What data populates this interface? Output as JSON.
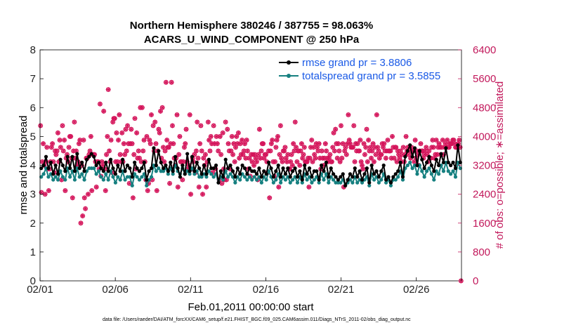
{
  "chart_data": {
    "type": "line",
    "title": [
      "Northern Hemisphere 380246 / 387755 = 98.063%",
      "ACARS_U_WIND_COMPONENT @ 250 hPa"
    ],
    "xlabel": "Feb.01,2011 00:00:00 start",
    "ylabel_left": "rmse and totalspread",
    "ylabel_right": "# of obs: o=possible; ∗=assimilated",
    "footnote": "data file: /Users/raeder/DAI/ATM_forcXX/CAM6_setup/f.e21.FHIST_BGC.f09_025.CAM6assim.011/Diags_NTrS_2011-02/obs_diag_output.nc",
    "x_ticks": [
      1,
      6,
      11,
      16,
      21,
      26
    ],
    "x_tick_labels": [
      "02/01",
      "02/06",
      "02/11",
      "02/16",
      "02/21",
      "02/26"
    ],
    "xlim": [
      1,
      29
    ],
    "ylim_left": [
      0,
      8
    ],
    "y_ticks_left": [
      "0",
      "1",
      "2",
      "3",
      "4",
      "5",
      "6",
      "7",
      "8"
    ],
    "ylim_right": [
      0,
      6400
    ],
    "y_ticks_right": [
      "0",
      "800",
      "1600",
      "2400",
      "3200",
      "4000",
      "4800",
      "5600",
      "6400"
    ],
    "colors": {
      "rmse": "#000000",
      "spread": "#168080",
      "obs": "#d4145a",
      "legend_text": "#1a5ae6"
    },
    "series": [
      {
        "name": "rmse grand pr = 3.8806",
        "axis": "left",
        "values": [
          3.9,
          4.0,
          4.3,
          3.9,
          4.1,
          3.7,
          4.0,
          3.7,
          4.2,
          4.0,
          3.8,
          4.3,
          3.9,
          4.3,
          3.8,
          4.4,
          3.9,
          4.1,
          3.8,
          4.2,
          4.3,
          4.4,
          4.3,
          4.0,
          4.1,
          3.9,
          3.8,
          4.1,
          3.8,
          4.2,
          3.9,
          3.7,
          4.0,
          3.8,
          4.2,
          3.8,
          4.0,
          3.9,
          3.6,
          4.1,
          3.9,
          3.8,
          3.9,
          4.1,
          3.5,
          3.8,
          3.9,
          4.6,
          4.0,
          4.5,
          4.1,
          3.9,
          4.0,
          3.8,
          4.1,
          3.8,
          4.3,
          3.9,
          3.6,
          4.0,
          3.7,
          4.4,
          3.8,
          4.3,
          3.8,
          4.1,
          3.9,
          3.7,
          4.0,
          3.7,
          4.2,
          3.9,
          3.9,
          4.0,
          3.4,
          3.8,
          3.6,
          4.2,
          3.9,
          4.0,
          3.8,
          3.6,
          3.9,
          3.7,
          4.0,
          3.9,
          3.7,
          3.9,
          3.8,
          3.8,
          3.7,
          3.9,
          3.6,
          3.8,
          3.7,
          4.1,
          3.9,
          3.6,
          3.8,
          4.0,
          3.6,
          3.9,
          3.7,
          3.9,
          3.6,
          3.8,
          3.9,
          3.6,
          3.8,
          3.5,
          4.0,
          3.7,
          3.9,
          3.6,
          3.8,
          3.8,
          3.5,
          4.0,
          3.8,
          4.1,
          3.6,
          3.9,
          3.7,
          3.6,
          3.5,
          3.6,
          3.7,
          3.3,
          3.5,
          3.7,
          3.6,
          3.9,
          3.6,
          3.8,
          3.5,
          3.7,
          3.9,
          3.4,
          4.0,
          3.7,
          3.8,
          3.6,
          3.8,
          4.0,
          3.5,
          3.6,
          3.4,
          3.6,
          3.7,
          3.8,
          4.1,
          3.6,
          4.3,
          4.5,
          4.7,
          4.3,
          4.6,
          4.0,
          4.5,
          4.2,
          3.9,
          4.1,
          4.3,
          4.0,
          3.8,
          4.2,
          4.0,
          4.4,
          4.1,
          4.6,
          4.1,
          4.0,
          4.1,
          3.9,
          4.7,
          4.1
        ]
      },
      {
        "name": "totalspread grand pr = 3.5855",
        "axis": "left",
        "values": [
          3.6,
          3.7,
          3.9,
          3.6,
          3.7,
          3.5,
          3.6,
          3.5,
          3.8,
          3.6,
          3.5,
          3.9,
          3.6,
          3.8,
          3.5,
          3.9,
          3.6,
          3.7,
          3.5,
          3.8,
          3.9,
          3.9,
          3.9,
          3.7,
          3.8,
          3.6,
          3.5,
          3.7,
          3.5,
          3.8,
          3.6,
          3.4,
          3.6,
          3.5,
          3.8,
          3.5,
          3.6,
          3.6,
          3.3,
          3.7,
          3.6,
          3.5,
          3.6,
          3.7,
          3.3,
          3.5,
          3.6,
          4.0,
          3.8,
          3.9,
          3.8,
          3.8,
          3.9,
          3.7,
          3.9,
          3.7,
          4.0,
          3.8,
          3.7,
          3.9,
          3.7,
          3.8,
          3.7,
          3.9,
          3.7,
          3.8,
          3.6,
          3.6,
          3.7,
          3.6,
          3.8,
          3.7,
          3.6,
          3.7,
          3.4,
          3.6,
          3.5,
          3.8,
          3.6,
          3.7,
          3.6,
          3.4,
          3.6,
          3.5,
          3.7,
          3.6,
          3.5,
          3.6,
          3.5,
          3.6,
          3.5,
          3.6,
          3.4,
          3.6,
          3.5,
          3.8,
          3.6,
          3.4,
          3.5,
          3.7,
          3.4,
          3.6,
          3.5,
          3.6,
          3.4,
          3.5,
          3.6,
          3.4,
          3.6,
          3.4,
          3.7,
          3.5,
          3.6,
          3.4,
          3.5,
          3.6,
          3.4,
          3.7,
          3.5,
          3.7,
          3.4,
          3.6,
          3.5,
          3.4,
          3.4,
          3.4,
          3.5,
          3.3,
          3.4,
          3.5,
          3.4,
          3.6,
          3.4,
          3.5,
          3.4,
          3.5,
          3.6,
          3.3,
          3.7,
          3.5,
          3.6,
          3.4,
          3.5,
          3.7,
          3.4,
          3.5,
          3.3,
          3.5,
          3.5,
          3.6,
          3.8,
          3.5,
          3.9,
          4.0,
          4.1,
          3.9,
          4.0,
          3.7,
          4.0,
          3.8,
          3.6,
          3.8,
          3.9,
          3.7,
          3.5,
          3.8,
          3.7,
          4.0,
          3.8,
          4.1,
          3.8,
          3.7,
          3.8,
          3.6,
          4.1,
          3.9
        ]
      },
      {
        "name": "# of obs (possible / assimilated)",
        "axis": "right",
        "values": [
          4300,
          2450,
          3300,
          3800,
          3200,
          2400,
          3300,
          3700,
          3100,
          2500,
          3100,
          3300,
          3700,
          3800,
          3300,
          3000,
          3600,
          3500,
          3600,
          4100,
          3300,
          3900,
          3700,
          2800,
          4300,
          3600,
          3900,
          2500,
          3400,
          3500,
          3300,
          3700,
          4000,
          4000,
          3400,
          2300,
          3600,
          4400,
          3400,
          3600,
          3200,
          3300,
          3800,
          3900,
          1600,
          3200,
          1800,
          3900,
          2300,
          2000,
          3400,
          3400,
          2400,
          3500,
          3600,
          4000,
          2500,
          3500,
          3500,
          3500,
          3300,
          2600,
          3300,
          3300,
          3100,
          4900,
          2900,
          3300,
          3200,
          4700,
          3100,
          2500,
          3500,
          4000,
          5300,
          3600,
          3300,
          3900,
          3000,
          4400,
          4500,
          4500,
          3300,
          4100,
          3300,
          3900,
          4600,
          3500,
          3300,
          4100,
          3300,
          3800,
          3500,
          4200,
          3600,
          4300,
          3800,
          2700,
          3800,
          4200,
          3800,
          2300,
          3500,
          4500,
          3100,
          4100,
          3400,
          3600,
          3400,
          4800,
          3300,
          4800,
          3600,
          3900,
          3300,
          2800,
          4000,
          2500,
          2700,
          3900,
          3800,
          4600,
          2800,
          4300,
          3600,
          4400,
          3800,
          2500,
          3600,
          4200,
          4100,
          4700,
          3400,
          4800,
          3700,
          3300,
          3600,
          5500,
          3900,
          3700,
          3700,
          2700,
          3800,
          5500,
          4300,
          3800,
          3400,
          3200,
          3400,
          4600,
          2600,
          3500,
          4000,
          3300,
          3300,
          2800,
          3300,
          3700,
          3800,
          4200,
          3300,
          3100,
          3200,
          4600,
          2400,
          3100,
          3400,
          3300,
          3500,
          3000,
          3600,
          4400,
          3400,
          2600,
          3800,
          4300,
          3600,
          2400,
          3400,
          3200,
          3500,
          2600,
          3300,
          4400,
          3900,
          3600,
          4000,
          3800,
          3000,
          4300,
          3800,
          3100,
          4000,
          3800,
          3600,
          2800,
          4000,
          3500,
          2700,
          4100,
          3100,
          2800,
          4400,
          2800,
          4200,
          3800,
          3600,
          3100,
          3600,
          4000,
          3500,
          3800,
          3300,
          3700,
          4000,
          3800,
          4100,
          3400,
          3800,
          3500,
          3900,
          3500,
          3600,
          3800,
          3400,
          3900,
          3600,
          3100,
          3400,
          2900,
          3500,
          3300,
          3500,
          3200,
          3500,
          3400,
          3300,
          2800,
          3500,
          4200,
          3400,
          3600,
          3800,
          3800,
          3400,
          3500,
          3500,
          3300,
          3000,
          3600,
          2300,
          3600,
          3800,
          3900,
          3300,
          2900,
          3300,
          3700,
          3900,
          4000,
          2600,
          3500,
          4300,
          3400,
          3300,
          3600,
          3600,
          3700,
          3400,
          3300,
          3500,
          3100,
          3100,
          3300,
          3500,
          3200,
          3800,
          3600,
          4400,
          3700,
          3300,
          3600,
          3600,
          3200,
          3600,
          3800,
          3400,
          3500,
          3700,
          3300,
          3300,
          3300,
          3400,
          2600,
          3400,
          3700,
          3900,
          3300,
          3700,
          3500,
          3400,
          3800,
          3700,
          3600,
          3800,
          3400,
          3100,
          3600,
          3400,
          3200,
          3400,
          3800,
          3600,
          3400,
          3300,
          3400,
          3500,
          3300,
          3300,
          3700,
          4100,
          3600,
          4200,
          3800,
          3400,
          3800,
          3600,
          3300,
          4300,
          3400,
          3800,
          2600,
          3600,
          3700,
          3500,
          3800,
          4600,
          3900,
          3800,
          3700,
          3700,
          3700,
          4300,
          3300,
          3800,
          3600,
          3800,
          3600,
          3600,
          3900,
          3300,
          3200,
          3100,
          3800,
          3500,
          3700,
          4200,
          3300,
          3900,
          3600,
          3700,
          3400,
          3600,
          3800,
          3300,
          3700,
          3500,
          4600,
          3700,
          3600,
          3400,
          3500,
          3500,
          3800,
          3700,
          3800,
          3600,
          3400,
          3600,
          3900,
          3600,
          3600,
          3600,
          3400,
          4000,
          3700,
          3400,
          3700,
          3700,
          3300,
          3600,
          3500,
          3400,
          3600,
          3300,
          3500,
          3700,
          3300,
          3500,
          4000,
          3600,
          3700,
          3500,
          3600,
          3400,
          3700,
          3600,
          3600,
          3300,
          3900,
          3400,
          3600,
          3500,
          3200,
          3600,
          3800,
          3600,
          3600,
          3400,
          3500,
          3600,
          3700,
          3500,
          3300,
          3600,
          3400,
          3400,
          3700,
          3900,
          3700,
          3400,
          3500,
          3900,
          3500,
          3700,
          3800,
          3700,
          3500,
          3700,
          3900,
          3500,
          3700,
          3800,
          3700,
          3900,
          3700,
          3700,
          3800,
          3800,
          3800,
          3900,
          3900,
          3800,
          3700,
          3700,
          3700,
          3800,
          3900,
          3700,
          0
        ]
      }
    ]
  }
}
